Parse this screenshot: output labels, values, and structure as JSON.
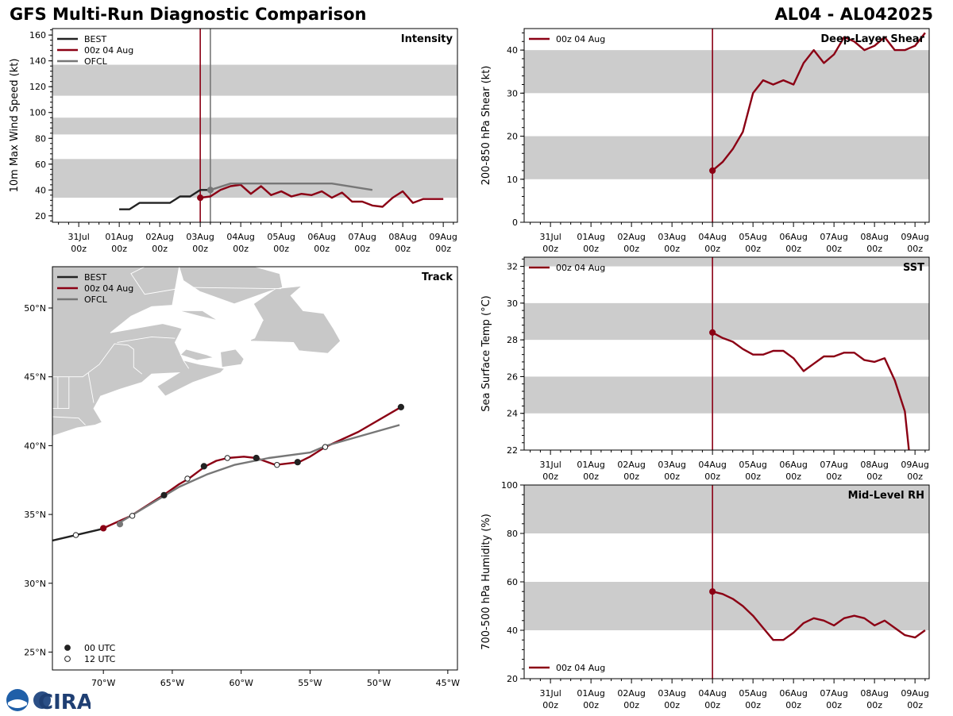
{
  "header": {
    "title": "GFS Multi-Run Diagnostic Comparison",
    "storm_id": "AL04 - AL042025"
  },
  "colors": {
    "best": "#222222",
    "run": "#8b0014",
    "ofcl": "#777777",
    "band": "#cccccc"
  },
  "logo": {
    "text": "CIRA"
  },
  "time_ticks": [
    "31Jul\n00z",
    "01Aug\n00z",
    "02Aug\n00z",
    "03Aug\n00z",
    "04Aug\n00z",
    "05Aug\n00z",
    "06Aug\n00z",
    "07Aug\n00z",
    "08Aug\n00z",
    "09Aug\n00z"
  ],
  "chart_data": [
    {
      "id": "intensity",
      "type": "line",
      "title": "Intensity",
      "xlabel": "",
      "ylabel": "10m Max Wind Speed (kt)",
      "xlim": [
        -3.65,
        6.35
      ],
      "ylim": [
        15,
        165
      ],
      "yticks": [
        20,
        40,
        60,
        80,
        100,
        120,
        140,
        160
      ],
      "bands": [
        [
          34,
          64
        ],
        [
          83,
          96
        ],
        [
          113,
          137
        ]
      ],
      "vlines": [
        {
          "x": 0,
          "series": "run"
        },
        {
          "x": 0.25,
          "series": "ofcl"
        }
      ],
      "legend": [
        "BEST",
        "00z 04 Aug",
        "OFCL"
      ],
      "series": [
        {
          "name": "BEST",
          "key": "best",
          "x": [
            -2,
            -1.75,
            -1.5,
            -1.25,
            -1,
            -0.75,
            -0.5,
            -0.25,
            0,
            0.25
          ],
          "y": [
            25,
            25,
            30,
            30,
            30,
            30,
            35,
            35,
            40,
            40
          ]
        },
        {
          "name": "00z 04 Aug",
          "key": "run",
          "x": [
            0,
            0.25,
            0.5,
            0.75,
            1,
            1.25,
            1.5,
            1.75,
            2,
            2.25,
            2.5,
            2.75,
            3,
            3.25,
            3.5,
            3.75,
            4,
            4.25,
            4.5,
            4.75,
            5,
            5.25,
            5.5,
            5.75,
            6
          ],
          "y": [
            34,
            35,
            40,
            43,
            44,
            37,
            43,
            36,
            39,
            35,
            37,
            36,
            39,
            34,
            38,
            31,
            31,
            28,
            27,
            34,
            39,
            30,
            33,
            33,
            33
          ]
        },
        {
          "name": "OFCL",
          "key": "ofcl",
          "x": [
            0.25,
            0.75,
            1.25,
            1.75,
            2.25,
            3.25,
            4.25
          ],
          "y": [
            40,
            45,
            45,
            45,
            45,
            45,
            40
          ]
        }
      ],
      "markers": [
        {
          "series": "run",
          "x": 0,
          "y": 34
        },
        {
          "series": "ofcl",
          "x": 0.25,
          "y": 40
        }
      ]
    },
    {
      "id": "shear",
      "type": "line",
      "title": "Deep-Layer Shear",
      "xlabel": "",
      "ylabel": "200-850 hPa Shear (kt)",
      "xlim": [
        -4.65,
        5.35
      ],
      "ylim": [
        0,
        45
      ],
      "yticks": [
        0,
        10,
        20,
        30,
        40
      ],
      "bands": [
        [
          10,
          20
        ],
        [
          30,
          40
        ]
      ],
      "vlines": [
        {
          "x": 0,
          "series": "run"
        }
      ],
      "legend": [
        "00z 04 Aug"
      ],
      "series": [
        {
          "name": "00z 04 Aug",
          "key": "run",
          "x": [
            0,
            0.25,
            0.5,
            0.75,
            1,
            1.25,
            1.5,
            1.75,
            2,
            2.25,
            2.5,
            2.75,
            3,
            3.25,
            3.5,
            3.75,
            4,
            4.25,
            4.5,
            4.75,
            5,
            5.25
          ],
          "y": [
            12,
            14,
            17,
            21,
            30,
            33,
            32,
            33,
            32,
            37,
            40,
            37,
            39,
            43,
            42,
            40,
            41,
            43,
            40,
            40,
            41,
            44
          ]
        }
      ],
      "markers": [
        {
          "series": "run",
          "x": 0,
          "y": 12
        }
      ]
    },
    {
      "id": "sst",
      "type": "line",
      "title": "SST",
      "xlabel": "",
      "ylabel": "Sea Surface Temp (°C)",
      "xlim": [
        -4.65,
        5.35
      ],
      "ylim": [
        22,
        32.5
      ],
      "yticks": [
        22,
        24,
        26,
        28,
        30,
        32
      ],
      "bands": [
        [
          24,
          26
        ],
        [
          28,
          30
        ],
        [
          32,
          32.5
        ]
      ],
      "vlines": [
        {
          "x": 0,
          "series": "run"
        }
      ],
      "legend": [
        "00z 04 Aug"
      ],
      "series": [
        {
          "name": "00z 04 Aug",
          "key": "run",
          "x": [
            0,
            0.25,
            0.5,
            0.75,
            1,
            1.25,
            1.5,
            1.75,
            2,
            2.25,
            2.5,
            2.75,
            3,
            3.25,
            3.5,
            3.75,
            4,
            4.25,
            4.5,
            4.75,
            4.85
          ],
          "y": [
            28.4,
            28.1,
            27.9,
            27.5,
            27.2,
            27.2,
            27.4,
            27.4,
            27.0,
            26.3,
            26.7,
            27.1,
            27.1,
            27.3,
            27.3,
            26.9,
            26.8,
            27.0,
            25.8,
            24.1,
            22.0
          ]
        }
      ],
      "markers": [
        {
          "series": "run",
          "x": 0,
          "y": 28.4
        }
      ]
    },
    {
      "id": "rh",
      "type": "line",
      "title": "Mid-Level RH",
      "xlabel": "",
      "ylabel": "700-500 hPa Humidity (%)",
      "xlim": [
        -4.65,
        5.35
      ],
      "ylim": [
        20,
        100
      ],
      "yticks": [
        20,
        40,
        60,
        80,
        100
      ],
      "bands": [
        [
          40,
          60
        ],
        [
          80,
          100
        ]
      ],
      "vlines": [
        {
          "x": 0,
          "series": "run"
        }
      ],
      "legend": [
        "00z 04 Aug"
      ],
      "series": [
        {
          "name": "00z 04 Aug",
          "key": "run",
          "x": [
            0,
            0.25,
            0.5,
            0.75,
            1,
            1.25,
            1.5,
            1.75,
            2,
            2.25,
            2.5,
            2.75,
            3,
            3.25,
            3.5,
            3.75,
            4,
            4.25,
            4.5,
            4.75,
            5,
            5.25
          ],
          "y": [
            56,
            55,
            53,
            50,
            46,
            41,
            36,
            36,
            39,
            43,
            45,
            44,
            42,
            45,
            46,
            45,
            42,
            44,
            41,
            38,
            37,
            40
          ]
        }
      ],
      "markers": [
        {
          "series": "run",
          "x": 0,
          "y": 56
        }
      ]
    },
    {
      "id": "track",
      "type": "line",
      "title": "Track",
      "xlabel": "",
      "ylabel": "",
      "xlim": [
        -73.7,
        -44.3
      ],
      "ylim": [
        23.7,
        53
      ],
      "xticks": [
        -70,
        -65,
        -60,
        -55,
        -50,
        -45
      ],
      "xtick_labels": [
        "70°W",
        "65°W",
        "60°W",
        "55°W",
        "50°W",
        "45°W"
      ],
      "yticks": [
        25,
        30,
        35,
        40,
        45,
        50
      ],
      "ytick_labels": [
        "25°N",
        "30°N",
        "35°N",
        "40°N",
        "45°N",
        "50°N"
      ],
      "legend": [
        "BEST",
        "00z 04 Aug",
        "OFCL"
      ],
      "time_legend": [
        "00 UTC",
        "12 UTC"
      ],
      "series": [
        {
          "name": "BEST",
          "key": "best",
          "x": [
            -73.7,
            -72.0,
            -70.3,
            -70.0
          ],
          "y": [
            33.1,
            33.5,
            33.9,
            34.0
          ]
        },
        {
          "name": "00z 04 Aug",
          "key": "run",
          "x": [
            -70.0,
            -68.0,
            -65.5,
            -64.5,
            -63.8,
            -63.0,
            -62.6,
            -61.8,
            -61.0,
            -59.8,
            -58.9,
            -57.5,
            -55.8,
            -55.0,
            -53.9,
            -51.5,
            -48.4
          ],
          "y": [
            34.0,
            34.9,
            36.5,
            37.2,
            37.6,
            38.2,
            38.5,
            38.9,
            39.1,
            39.2,
            39.1,
            38.6,
            38.8,
            39.2,
            39.9,
            41.0,
            42.8
          ]
        },
        {
          "name": "OFCL",
          "key": "ofcl",
          "x": [
            -69.0,
            -66.5,
            -64.5,
            -62.5,
            -60.5,
            -58.0,
            -55.0,
            -53.8,
            -48.5
          ],
          "y": [
            34.3,
            35.8,
            37.0,
            37.9,
            38.6,
            39.1,
            39.5,
            40.0,
            41.5
          ]
        }
      ],
      "markers": [
        {
          "series": "best",
          "style": "open",
          "x": -72.0,
          "y": 33.5
        },
        {
          "series": "run",
          "style": "filled",
          "x": -70.0,
          "y": 34.0
        },
        {
          "series": "ofcl",
          "style": "filled",
          "x": -68.8,
          "y": 34.3
        },
        {
          "series": "ofcl",
          "style": "open",
          "x": -67.9,
          "y": 34.9
        },
        {
          "series": "best",
          "style": "filled",
          "x": -65.6,
          "y": 36.4
        },
        {
          "series": "best",
          "style": "open",
          "x": -63.9,
          "y": 37.6
        },
        {
          "series": "best",
          "style": "filled",
          "x": -62.7,
          "y": 38.5
        },
        {
          "series": "best",
          "style": "open",
          "x": -61.0,
          "y": 39.1
        },
        {
          "series": "best",
          "style": "filled",
          "x": -58.9,
          "y": 39.1
        },
        {
          "series": "best",
          "style": "open",
          "x": -57.4,
          "y": 38.6
        },
        {
          "series": "best",
          "style": "filled",
          "x": -55.9,
          "y": 38.8
        },
        {
          "series": "best",
          "style": "open",
          "x": -53.9,
          "y": 39.9
        },
        {
          "series": "best",
          "style": "filled",
          "x": -48.4,
          "y": 42.8
        }
      ]
    }
  ]
}
